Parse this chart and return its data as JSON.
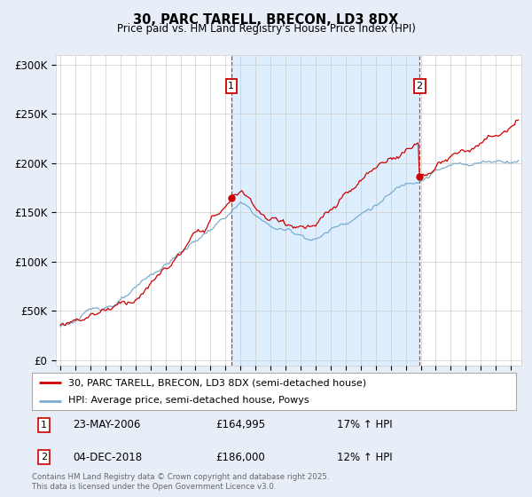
{
  "title": "30, PARC TARELL, BRECON, LD3 8DX",
  "subtitle": "Price paid vs. HM Land Registry's House Price Index (HPI)",
  "ylabel_ticks": [
    "£0",
    "£50K",
    "£100K",
    "£150K",
    "£200K",
    "£250K",
    "£300K"
  ],
  "ytick_values": [
    0,
    50000,
    100000,
    150000,
    200000,
    250000,
    300000
  ],
  "ylim": [
    -5000,
    310000
  ],
  "xlim_start": 1994.7,
  "xlim_end": 2025.7,
  "line1_color": "#cc0000",
  "line2_color": "#7aadcf",
  "shade_color": "#ddeeff",
  "vline_color": "#cc0000",
  "vline1_x": 2006.38,
  "vline2_x": 2018.92,
  "marker1_y": 164995,
  "marker2_y": 186000,
  "legend_label1": "30, PARC TARELL, BRECON, LD3 8DX (semi-detached house)",
  "legend_label2": "HPI: Average price, semi-detached house, Powys",
  "annotation1_num": "1",
  "annotation1_date": "23-MAY-2006",
  "annotation1_price": "£164,995",
  "annotation1_hpi": "17% ↑ HPI",
  "annotation2_num": "2",
  "annotation2_date": "04-DEC-2018",
  "annotation2_price": "£186,000",
  "annotation2_hpi": "12% ↑ HPI",
  "footer": "Contains HM Land Registry data © Crown copyright and database right 2025.\nThis data is licensed under the Open Government Licence v3.0.",
  "bg_color": "#e8eef8",
  "plot_bg_color": "#ffffff",
  "grid_color": "#cccccc"
}
